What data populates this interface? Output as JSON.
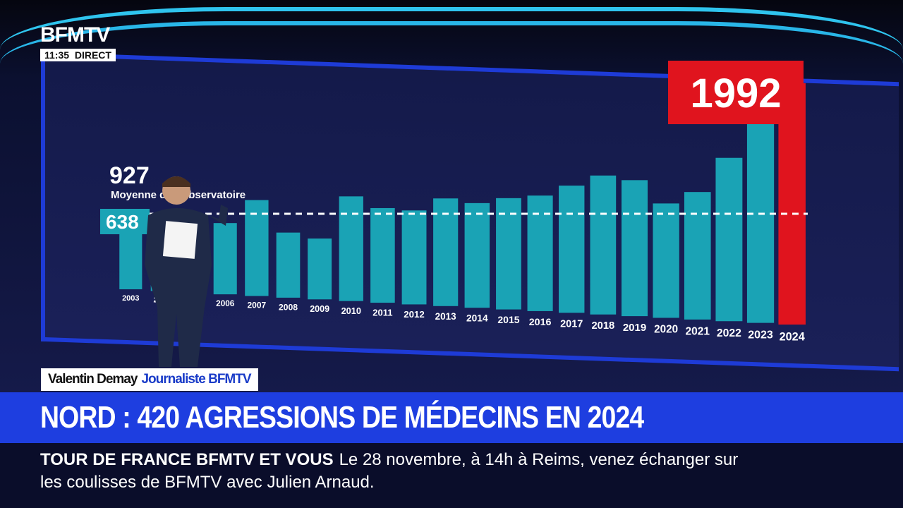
{
  "channel": {
    "logo": "BFMTV",
    "time": "11:35",
    "status": "DIRECT"
  },
  "lower_third": {
    "name": "Valentin Demay",
    "role": "Journaliste BFMTV"
  },
  "headline": "NORD : 420 AGRESSIONS DE MÉDECINS EN 2024",
  "ticker": {
    "label": "TOUR DE FRANCE BFMTV ET VOUS",
    "text": "Le 28 novembre, à 14h à Reims, venez échanger sur les coulisses de BFMTV avec Julien Arnaud."
  },
  "colors": {
    "bar": "#1aa3b5",
    "highlight": "#e0141e",
    "panel": "#161c4f",
    "headline_bg": "#1e3ee0"
  },
  "chart_data": {
    "type": "bar",
    "categories": [
      "2003",
      "2004",
      "2005",
      "2006",
      "2007",
      "2008",
      "2009",
      "2010",
      "2011",
      "2012",
      "2013",
      "2014",
      "2015",
      "2016",
      "2017",
      "2018",
      "2019",
      "2020",
      "2021",
      "2022",
      "2023",
      "2024"
    ],
    "values": [
      638,
      600,
      600,
      620,
      830,
      560,
      520,
      890,
      800,
      790,
      900,
      870,
      920,
      950,
      1040,
      1130,
      1100,
      920,
      1020,
      1300,
      1600,
      1992
    ],
    "highlight_category": "2024",
    "highlight_label": "1992",
    "first_label": "638",
    "reference_line": {
      "value": 927,
      "label_value": "927",
      "label": "Moyenne de l'Observatoire"
    },
    "ylim": [
      0,
      2100
    ],
    "grid": false
  }
}
